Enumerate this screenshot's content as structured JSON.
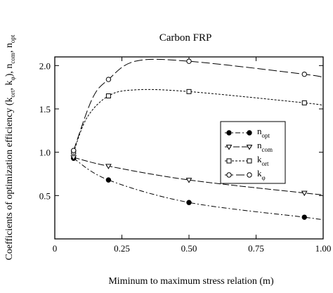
{
  "chart_data": {
    "type": "line",
    "title": "Carbon FRP",
    "xlabel": "Miminum to maximum stress relation (m)",
    "ylabel": {
      "prefix": "Coefficients of optimization efficiency (k",
      "s1": "ort",
      "mid1": ", k",
      "s2": "φ",
      "mid2": "), n",
      "s3": "com",
      "mid3": ", n",
      "s4": "opt"
    },
    "xlim": [
      0,
      1
    ],
    "ylim": [
      0,
      2.1
    ],
    "x_ticks": [
      0,
      0.25,
      0.5,
      0.75,
      1
    ],
    "x_tick_labels": [
      "0",
      "0.25",
      "0.50",
      "0.75",
      "1.00"
    ],
    "y_ticks": [
      0.5,
      1.0,
      1.5,
      2.0
    ],
    "y_tick_labels": [
      "0.5",
      "1.0",
      "1.5",
      "2.0"
    ],
    "grid": false,
    "legend_position": "center-right",
    "series": [
      {
        "key": "n_opt",
        "name": "n",
        "name_sub": "opt",
        "marker": "filled-circle",
        "dash": "7,3,2,3",
        "x": [
          0.07,
          0.2,
          0.5,
          0.93,
          1.0
        ],
        "y": [
          0.93,
          0.68,
          0.42,
          0.25,
          0.22
        ],
        "marked": [
          0.07,
          0.2,
          0.5,
          0.93
        ]
      },
      {
        "key": "n_com",
        "name": "n",
        "name_sub": "com",
        "marker": "triangle-down",
        "dash": "9,3",
        "x": [
          0.07,
          0.2,
          0.5,
          0.93,
          1.0
        ],
        "y": [
          0.94,
          0.84,
          0.68,
          0.53,
          0.51
        ],
        "marked": [
          0.07,
          0.2,
          0.5,
          0.93
        ]
      },
      {
        "key": "k_ort",
        "name": "k",
        "name_sub": "ort",
        "marker": "square",
        "dash": "3,2",
        "x": [
          0.07,
          0.12,
          0.2,
          0.3,
          0.5,
          0.93,
          1.0
        ],
        "y": [
          1.0,
          1.4,
          1.65,
          1.72,
          1.7,
          1.57,
          1.54
        ],
        "marked": [
          0.07,
          0.2,
          0.5,
          0.93
        ]
      },
      {
        "key": "k_phi",
        "name": "k",
        "name_sub": "φ",
        "marker": "open-circle",
        "dash": "12,4",
        "x": [
          0.07,
          0.14,
          0.2,
          0.3,
          0.5,
          0.93,
          1.0
        ],
        "y": [
          1.02,
          1.62,
          1.84,
          2.05,
          2.05,
          1.9,
          1.86
        ],
        "marked": [
          0.07,
          0.2,
          0.5,
          0.93
        ]
      }
    ]
  }
}
